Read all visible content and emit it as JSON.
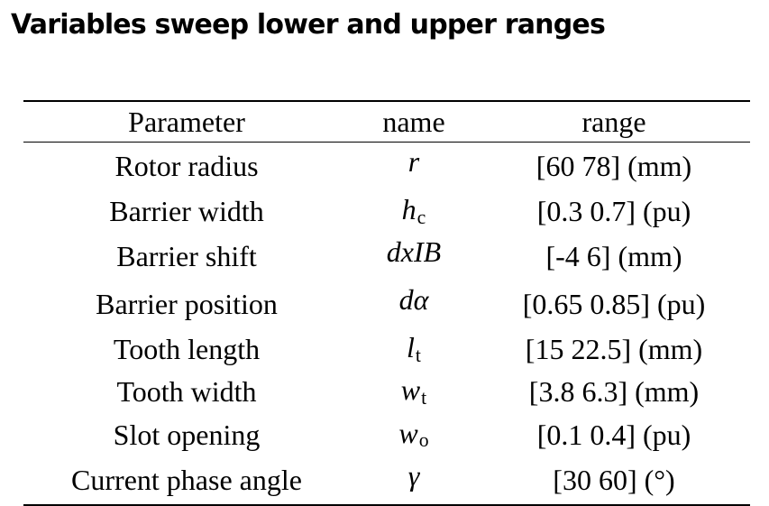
{
  "title": "Variables sweep lower and upper ranges",
  "table": {
    "headers": {
      "parameter": "Parameter",
      "name": "name",
      "range": "range"
    },
    "rows": [
      {
        "parameter": "Rotor radius",
        "symbol": "r",
        "subscript": "",
        "range": "[60 78] (mm)"
      },
      {
        "parameter": "Barrier width",
        "symbol": "h",
        "subscript": "c",
        "range": "[0.3 0.7] (pu)"
      },
      {
        "parameter": "Barrier shift",
        "symbol": "dxIB",
        "subscript": "",
        "range": "[-4 6] (mm)"
      },
      {
        "parameter": "Barrier position",
        "symbol": "dα",
        "subscript": "",
        "range": "[0.65 0.85] (pu)"
      },
      {
        "parameter": "Tooth length",
        "symbol": "l",
        "subscript": "t",
        "range": "[15 22.5] (mm)"
      },
      {
        "parameter": "Tooth width",
        "symbol": "w",
        "subscript": "t",
        "range": "[3.8 6.3] (mm)"
      },
      {
        "parameter": "Slot opening",
        "symbol": "w",
        "subscript": "o",
        "range": "[0.1 0.4] (pu)"
      },
      {
        "parameter": "Current phase angle",
        "symbol": "γ",
        "subscript": "",
        "range": "[30 60] (°)"
      }
    ]
  }
}
